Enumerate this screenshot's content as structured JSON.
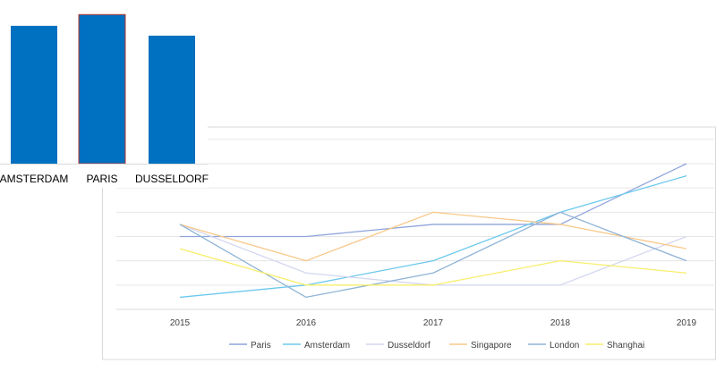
{
  "chart_data": [
    {
      "type": "bar",
      "title": "",
      "categories": [
        "AMSTERDAM",
        "PARIS",
        "DUSSELDORF"
      ],
      "values": [
        98,
        106,
        91
      ],
      "ylim": [
        0,
        110
      ],
      "bar_color": "#0070C0",
      "highlight_outline": {
        "category": "PARIS",
        "color": "#C0392B"
      },
      "grid": false
    },
    {
      "type": "line",
      "title": "",
      "categories": [
        "2015",
        "2016",
        "2017",
        "2018",
        "2019"
      ],
      "ylim": [
        0,
        6
      ],
      "grid": true,
      "legend_position": "bottom",
      "series": [
        {
          "name": "Paris",
          "color": "#8FA4DC",
          "values": [
            3.0,
            3.0,
            3.5,
            3.5,
            6.0
          ]
        },
        {
          "name": "Amsterdam",
          "color": "#6CC8EE",
          "values": [
            0.5,
            1.0,
            2.0,
            4.0,
            5.5
          ]
        },
        {
          "name": "Dusseldorf",
          "color": "#D4D7EF",
          "values": [
            3.5,
            1.5,
            1.0,
            1.0,
            3.0
          ]
        },
        {
          "name": "Singapore",
          "color": "#F9C98A",
          "values": [
            3.5,
            2.0,
            4.0,
            3.5,
            2.5
          ]
        },
        {
          "name": "London",
          "color": "#8FB4D6",
          "values": [
            3.5,
            0.5,
            1.5,
            4.0,
            2.0
          ]
        },
        {
          "name": "Shanghai",
          "color": "#F7EE6B",
          "values": [
            2.5,
            1.0,
            1.0,
            2.0,
            1.5
          ]
        }
      ]
    }
  ]
}
